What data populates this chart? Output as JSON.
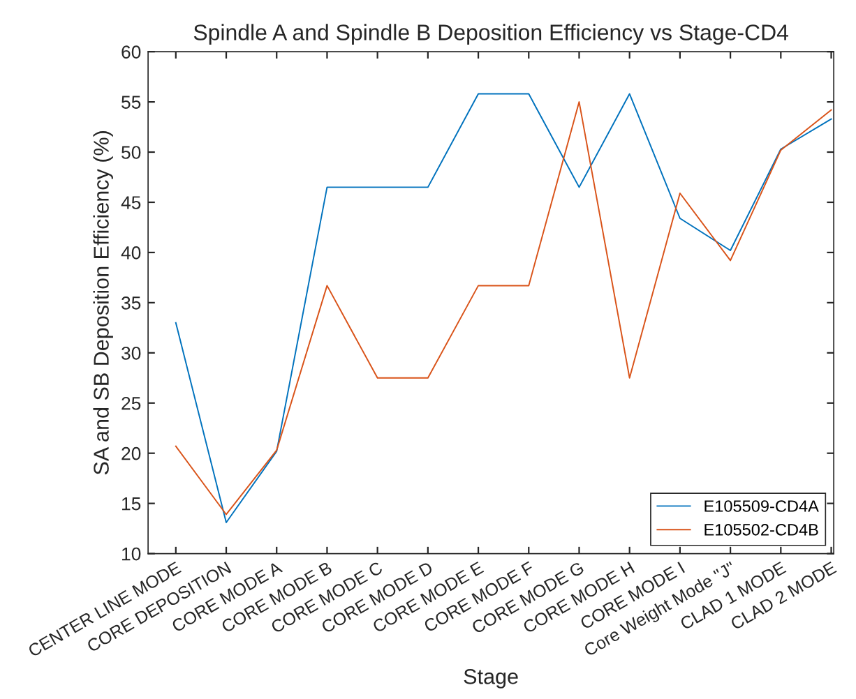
{
  "chart_data": {
    "type": "line",
    "title": "Spindle A and Spindle B Deposition Efficiency vs Stage-CD4",
    "xlabel": "Stage",
    "ylabel": "SA and SB Deposition Efficiency (%)",
    "categories": [
      "CENTER LINE MODE",
      "CORE DEPOSITION",
      "CORE MODE A",
      "CORE MODE B",
      "CORE MODE C",
      "CORE MODE D",
      "CORE MODE E",
      "CORE MODE F",
      "CORE MODE G",
      "CORE MODE H",
      "CORE MODE I",
      "Core Weight Mode \"J\"",
      "CLAD 1 MODE",
      "CLAD 2 MODE"
    ],
    "series": [
      {
        "name": "E105509-CD4A",
        "color": "#0072bd",
        "values": [
          33.0,
          13.1,
          20.2,
          46.5,
          46.5,
          46.5,
          55.8,
          55.8,
          46.5,
          55.8,
          43.4,
          40.2,
          50.3,
          53.3
        ]
      },
      {
        "name": "E105502-CD4B",
        "color": "#d95319",
        "values": [
          20.7,
          13.9,
          20.3,
          36.7,
          27.5,
          27.5,
          36.7,
          36.7,
          55.0,
          27.5,
          45.9,
          39.2,
          50.2,
          54.2
        ]
      }
    ],
    "ylim": [
      10,
      60
    ],
    "yticks": [
      10,
      15,
      20,
      25,
      30,
      35,
      40,
      45,
      50,
      55,
      60
    ],
    "grid": false,
    "legend": "bottom right"
  }
}
